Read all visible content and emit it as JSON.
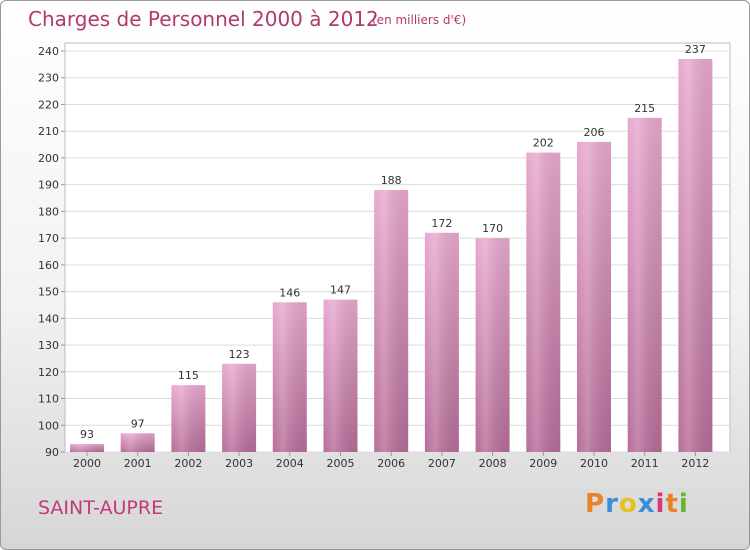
{
  "chart_data": {
    "type": "bar",
    "title": "Charges de Personnel 2000 à 2012",
    "subtitle": "(en milliers d'€)",
    "categories": [
      "2000",
      "2001",
      "2002",
      "2003",
      "2004",
      "2005",
      "2006",
      "2007",
      "2008",
      "2009",
      "2010",
      "2011",
      "2012"
    ],
    "values": [
      93,
      97,
      115,
      123,
      146,
      147,
      188,
      172,
      170,
      202,
      206,
      215,
      237
    ],
    "ylim": [
      90,
      240
    ],
    "yticks": [
      90,
      100,
      110,
      120,
      130,
      140,
      150,
      160,
      170,
      180,
      190,
      200,
      210,
      220,
      230,
      240
    ],
    "grid": true,
    "legend": "none"
  },
  "town_name": "SAINT-AUPRE",
  "logo": {
    "letters": [
      "P",
      "r",
      "o",
      "x",
      "i",
      "t",
      "i"
    ],
    "colors": [
      "#e8832a",
      "#3a8fd6",
      "#e8c11e",
      "#3a8fd6",
      "#d8357a",
      "#e8832a",
      "#6ab42d"
    ]
  },
  "colors": {
    "bar_light": "#e8a9cf",
    "bar_dark": "#b66d99",
    "title": "#b03a6e"
  }
}
